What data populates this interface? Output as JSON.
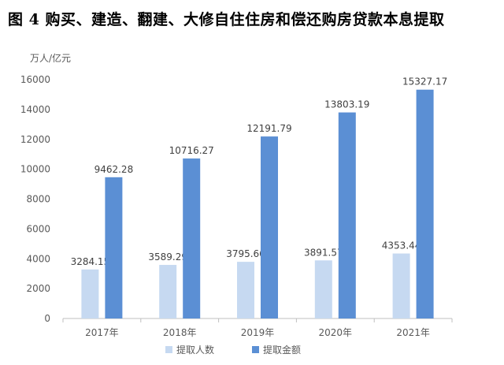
{
  "title": "图 4   购买、建造、翻建、大修自住住房和偿还购房贷款本息提取",
  "chart_data": {
    "type": "bar",
    "unit_label": "万人/亿元",
    "categories": [
      "2017年",
      "2018年",
      "2019年",
      "2020年",
      "2021年"
    ],
    "series": [
      {
        "name": "提取人数",
        "color": "#c6d9f1",
        "values": [
          3284.15,
          3589.29,
          3795.66,
          3891.57,
          4353.44
        ],
        "labels": [
          "3284.15",
          "3589.29",
          "3795.66",
          "3891.57",
          "4353.44"
        ]
      },
      {
        "name": "提取金额",
        "color": "#5b8fd4",
        "values": [
          9462.28,
          10716.27,
          12191.79,
          13803.19,
          15327.17
        ],
        "labels": [
          "9462.28",
          "10716.27",
          "12191.79",
          "13803.19",
          "15327.17"
        ]
      }
    ],
    "ylim": [
      0,
      16000
    ],
    "yticks": [
      0,
      2000,
      4000,
      6000,
      8000,
      10000,
      12000,
      14000,
      16000
    ],
    "legend_position": "bottom",
    "grid": false
  }
}
